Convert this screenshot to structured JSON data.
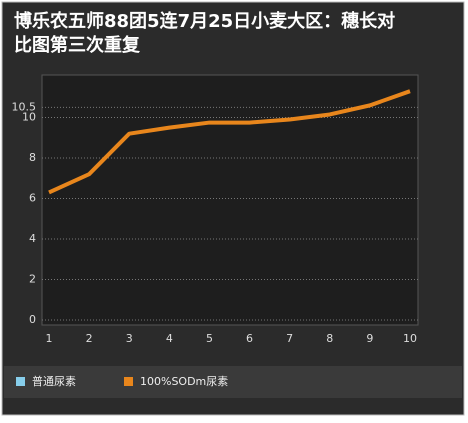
{
  "chart_data": {
    "type": "line",
    "title": "博乐农五师88团5连7月25日小麦大区：穗长对比图第三次重复",
    "categories": [
      "1",
      "2",
      "3",
      "4",
      "5",
      "6",
      "7",
      "8",
      "9",
      "10"
    ],
    "series": [
      {
        "name": "普通尿素",
        "color": "#87ceeb",
        "values": [
          null,
          null,
          null,
          null,
          null,
          null,
          null,
          null,
          null,
          null
        ]
      },
      {
        "name": "100%SODm尿素",
        "color": "#e8861c",
        "values": [
          6.3,
          7.2,
          9.2,
          9.5,
          9.75,
          9.75,
          9.9,
          10.15,
          10.6,
          11.3
        ]
      }
    ],
    "ylim": [
      -0.25,
      12.1
    ],
    "yticks": [
      0,
      2,
      4,
      6,
      8,
      10,
      10.5
    ],
    "grid": true,
    "legend": "bottom"
  }
}
